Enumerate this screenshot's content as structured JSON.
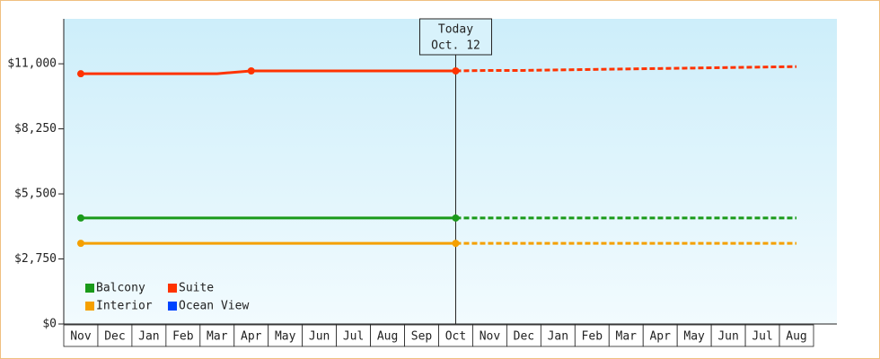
{
  "chart_data": {
    "type": "line",
    "categories": [
      "Nov",
      "Dec",
      "Jan",
      "Feb",
      "Mar",
      "Apr",
      "May",
      "Jun",
      "Jul",
      "Aug",
      "Sep",
      "Oct",
      "Nov",
      "Dec",
      "Jan",
      "Feb",
      "Mar",
      "Apr",
      "May",
      "Jun",
      "Jul",
      "Aug"
    ],
    "annotation": {
      "title": "Today",
      "date": "Oct. 12"
    },
    "series": [
      {
        "name": "Balcony",
        "color": "#1a9a1a",
        "values": [
          4480,
          4480,
          4480,
          4480,
          4480,
          4480,
          4480,
          4480,
          4480,
          4480,
          4480,
          4480,
          null,
          null,
          null,
          null,
          null,
          null,
          null,
          null,
          null,
          null
        ],
        "forecast": [
          null,
          null,
          null,
          null,
          null,
          null,
          null,
          null,
          null,
          null,
          null,
          4480,
          4480,
          4480,
          4480,
          4480,
          4480,
          4480,
          4480,
          4480,
          4480,
          4480
        ]
      },
      {
        "name": "Suite",
        "color": "#ff3300",
        "values": [
          10580,
          10580,
          10580,
          10580,
          10580,
          10700,
          10700,
          10700,
          10700,
          10700,
          10700,
          10700,
          null,
          null,
          null,
          null,
          null,
          null,
          null,
          null,
          null,
          null
        ],
        "forecast": [
          null,
          null,
          null,
          null,
          null,
          null,
          null,
          null,
          null,
          null,
          null,
          10700,
          10720,
          10720,
          10740,
          10760,
          10780,
          10800,
          10820,
          10840,
          10860,
          10880
        ]
      },
      {
        "name": "Interior",
        "color": "#f5a000",
        "values": [
          3410,
          3410,
          3410,
          3410,
          3410,
          3410,
          3410,
          3410,
          3410,
          3410,
          3410,
          3410,
          null,
          null,
          null,
          null,
          null,
          null,
          null,
          null,
          null,
          null
        ],
        "forecast": [
          null,
          null,
          null,
          null,
          null,
          null,
          null,
          null,
          null,
          null,
          null,
          3410,
          3410,
          3410,
          3410,
          3410,
          3410,
          3410,
          3410,
          3410,
          3410,
          3410
        ]
      },
      {
        "name": "Ocean View",
        "color": "#0044ff",
        "values": [
          null,
          null,
          null,
          null,
          null,
          null,
          null,
          null,
          null,
          null,
          null,
          null,
          null,
          null,
          null,
          null,
          null,
          null,
          null,
          null,
          null,
          null
        ],
        "forecast": [
          null,
          null,
          null,
          null,
          null,
          null,
          null,
          null,
          null,
          null,
          null,
          null,
          null,
          null,
          null,
          null,
          null,
          null,
          null,
          null,
          null,
          null
        ]
      }
    ],
    "ylim": [
      0,
      12900
    ],
    "yticks": [
      {
        "value": 0,
        "label": "$0"
      },
      {
        "value": 2750,
        "label": "$2,750"
      },
      {
        "value": 5500,
        "label": "$5,500"
      },
      {
        "value": 8250,
        "label": "$8,250"
      },
      {
        "value": 11000,
        "label": "$11,000"
      }
    ],
    "legend": "bottom-left"
  }
}
